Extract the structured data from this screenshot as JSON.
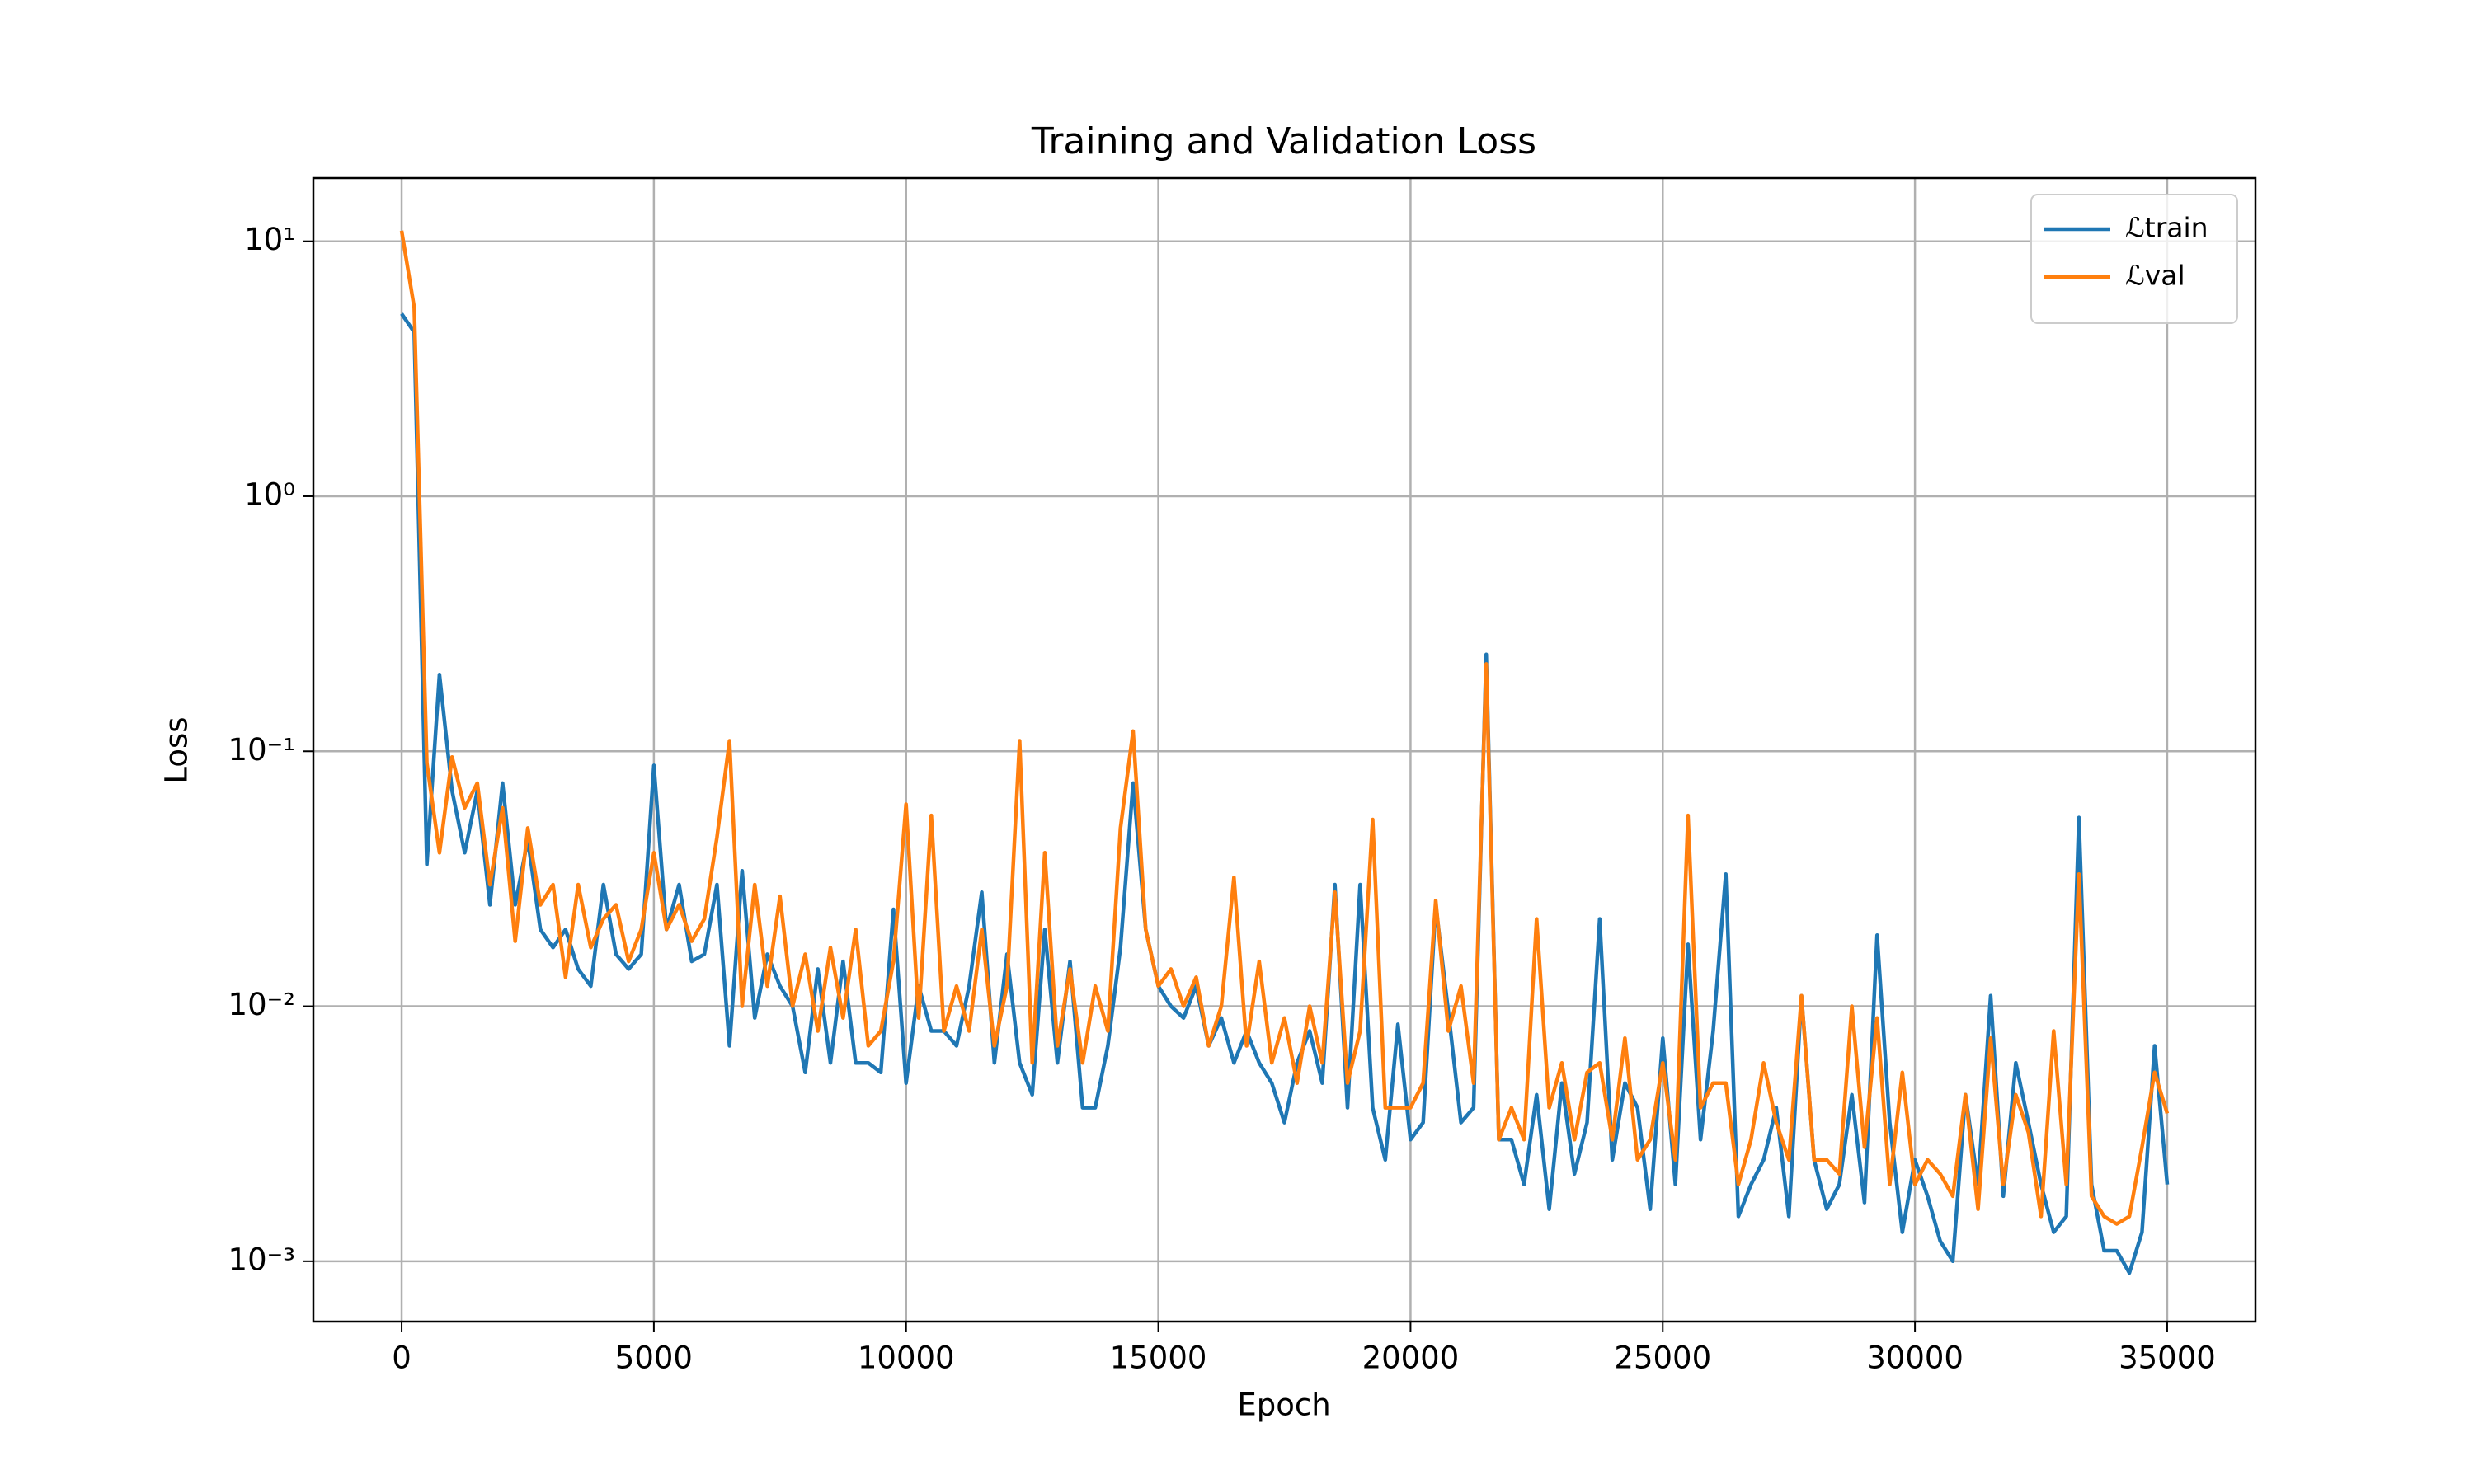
{
  "chart_data": {
    "type": "line",
    "title": "Training and Validation Loss",
    "x_label": "Epoch",
    "y_label": "Loss",
    "yscale": "log",
    "grid": true,
    "legend": "upper right",
    "xlim": [
      -1750,
      36750
    ],
    "xticks": [
      0,
      5000,
      10000,
      15000,
      20000,
      25000,
      30000,
      35000
    ],
    "ylim": [
      0.00058,
      17.7
    ],
    "yticks": [
      {
        "value": 10,
        "label": "10¹"
      },
      {
        "value": 1,
        "label": "10⁰"
      },
      {
        "value": 0.1,
        "label": "10⁻¹"
      },
      {
        "value": 0.01,
        "label": "10⁻²"
      },
      {
        "value": 0.001,
        "label": "10⁻³"
      }
    ],
    "x": [
      0,
      250,
      500,
      750,
      1000,
      1250,
      1500,
      1750,
      2000,
      2250,
      2500,
      2750,
      3000,
      3250,
      3500,
      3750,
      4000,
      4250,
      4500,
      4750,
      5000,
      5250,
      5500,
      5750,
      6000,
      6250,
      6500,
      6750,
      7000,
      7250,
      7500,
      7750,
      8000,
      8250,
      8500,
      8750,
      9000,
      9250,
      9500,
      9750,
      10000,
      10250,
      10500,
      10750,
      11000,
      11250,
      11500,
      11750,
      12000,
      12250,
      12500,
      12750,
      13000,
      13250,
      13500,
      13750,
      14000,
      14250,
      14500,
      14750,
      15000,
      15250,
      15500,
      15750,
      16000,
      16250,
      16500,
      16750,
      17000,
      17250,
      17500,
      17750,
      18000,
      18250,
      18500,
      18750,
      19000,
      19250,
      19500,
      19750,
      20000,
      20250,
      20500,
      20750,
      21000,
      21250,
      21500,
      21750,
      22000,
      22250,
      22500,
      22750,
      23000,
      23250,
      23500,
      23750,
      24000,
      24250,
      24500,
      24750,
      25000,
      25250,
      25500,
      25750,
      26000,
      26250,
      26500,
      26750,
      27000,
      27250,
      27500,
      27750,
      28000,
      28250,
      28500,
      28750,
      29000,
      29250,
      29500,
      29750,
      30000,
      30250,
      30500,
      30750,
      31000,
      31250,
      31500,
      31750,
      32000,
      32250,
      32500,
      32750,
      33000,
      33250,
      33500,
      33750,
      34000,
      34250,
      34500,
      34750,
      35000
    ],
    "series": [
      {
        "name": "ℒtrain",
        "color": "#1f77b4",
        "values": [
          5.2,
          4.4,
          0.036,
          0.2,
          0.07,
          0.04,
          0.07,
          0.025,
          0.075,
          0.025,
          0.045,
          0.02,
          0.017,
          0.02,
          0.014,
          0.012,
          0.03,
          0.016,
          0.014,
          0.016,
          0.088,
          0.02,
          0.03,
          0.015,
          0.016,
          0.03,
          0.007,
          0.034,
          0.009,
          0.016,
          0.012,
          0.01,
          0.0055,
          0.014,
          0.006,
          0.015,
          0.006,
          0.006,
          0.0055,
          0.024,
          0.005,
          0.012,
          0.008,
          0.008,
          0.007,
          0.012,
          0.028,
          0.006,
          0.016,
          0.006,
          0.0045,
          0.02,
          0.006,
          0.015,
          0.004,
          0.004,
          0.007,
          0.017,
          0.075,
          0.02,
          0.012,
          0.01,
          0.009,
          0.012,
          0.007,
          0.009,
          0.006,
          0.008,
          0.006,
          0.005,
          0.0035,
          0.006,
          0.008,
          0.005,
          0.03,
          0.004,
          0.03,
          0.004,
          0.0025,
          0.0085,
          0.003,
          0.0035,
          0.025,
          0.0095,
          0.0035,
          0.004,
          0.24,
          0.003,
          0.003,
          0.002,
          0.0045,
          0.0016,
          0.005,
          0.0022,
          0.0035,
          0.022,
          0.0025,
          0.005,
          0.004,
          0.0016,
          0.0075,
          0.002,
          0.0175,
          0.003,
          0.008,
          0.033,
          0.0015,
          0.002,
          0.0025,
          0.004,
          0.0015,
          0.011,
          0.0025,
          0.0016,
          0.002,
          0.0045,
          0.0017,
          0.019,
          0.0035,
          0.0013,
          0.0025,
          0.0018,
          0.0012,
          0.001,
          0.0045,
          0.002,
          0.011,
          0.0018,
          0.006,
          0.0035,
          0.002,
          0.0013,
          0.0015,
          0.055,
          0.002,
          0.0011,
          0.0011,
          0.0009,
          0.0013,
          0.007,
          0.002
        ]
      },
      {
        "name": "ℒval",
        "color": "#ff7f0e",
        "values": [
          11,
          5.5,
          0.09,
          0.04,
          0.095,
          0.06,
          0.075,
          0.03,
          0.06,
          0.018,
          0.05,
          0.025,
          0.03,
          0.013,
          0.03,
          0.017,
          0.022,
          0.025,
          0.015,
          0.02,
          0.04,
          0.02,
          0.025,
          0.018,
          0.022,
          0.046,
          0.11,
          0.01,
          0.03,
          0.012,
          0.027,
          0.01,
          0.016,
          0.008,
          0.017,
          0.009,
          0.02,
          0.007,
          0.008,
          0.015,
          0.062,
          0.009,
          0.056,
          0.008,
          0.012,
          0.008,
          0.02,
          0.007,
          0.012,
          0.11,
          0.006,
          0.04,
          0.007,
          0.014,
          0.006,
          0.012,
          0.008,
          0.05,
          0.12,
          0.02,
          0.012,
          0.014,
          0.01,
          0.013,
          0.007,
          0.01,
          0.032,
          0.007,
          0.015,
          0.006,
          0.009,
          0.005,
          0.01,
          0.006,
          0.028,
          0.005,
          0.008,
          0.054,
          0.004,
          0.004,
          0.004,
          0.005,
          0.026,
          0.008,
          0.012,
          0.005,
          0.22,
          0.003,
          0.004,
          0.003,
          0.022,
          0.004,
          0.006,
          0.003,
          0.0055,
          0.006,
          0.003,
          0.0075,
          0.0025,
          0.003,
          0.006,
          0.0025,
          0.056,
          0.004,
          0.005,
          0.005,
          0.002,
          0.003,
          0.006,
          0.0035,
          0.0025,
          0.011,
          0.0025,
          0.0025,
          0.0022,
          0.01,
          0.0028,
          0.009,
          0.002,
          0.0055,
          0.002,
          0.0025,
          0.0022,
          0.0018,
          0.0045,
          0.0016,
          0.0075,
          0.002,
          0.0045,
          0.0032,
          0.0015,
          0.008,
          0.002,
          0.033,
          0.0018,
          0.0015,
          0.0014,
          0.0015,
          0.0028,
          0.0055,
          0.0038
        ]
      }
    ]
  }
}
